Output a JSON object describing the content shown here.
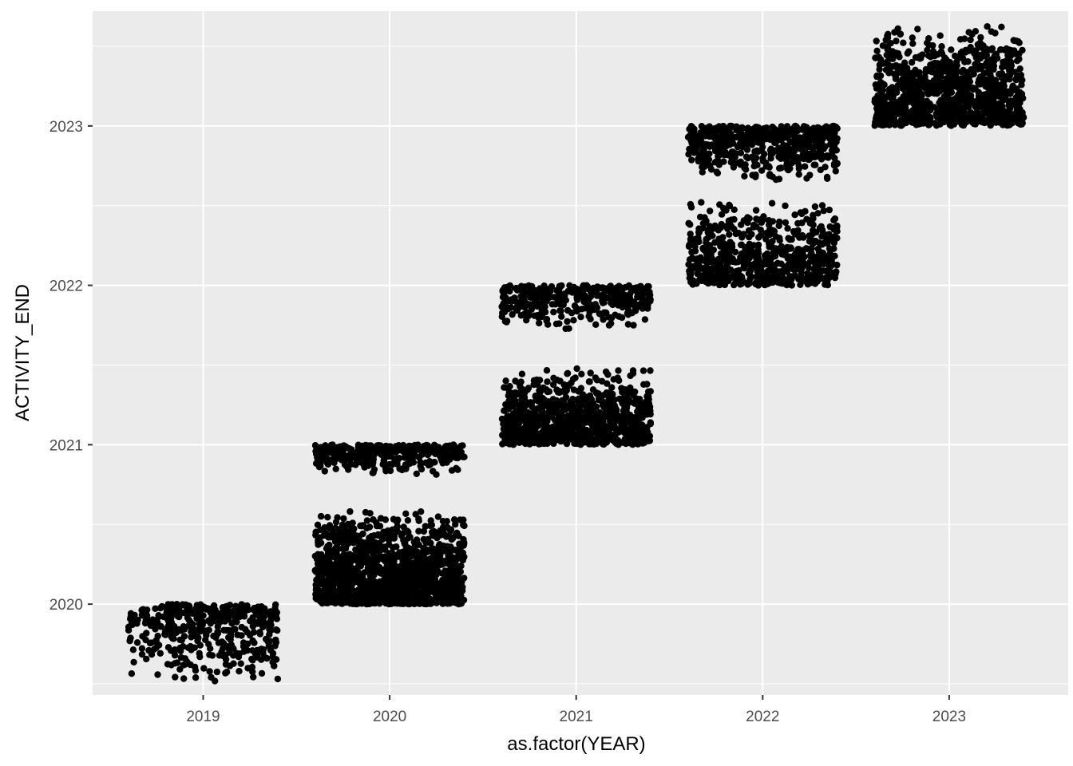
{
  "chart_data": {
    "type": "scatter",
    "title": "",
    "xlabel": "as.factor(YEAR)",
    "ylabel": "ACTIVITY_END",
    "x_type": "categorical-jitter",
    "categories": [
      "2019",
      "2020",
      "2021",
      "2022",
      "2023"
    ],
    "jitter_width": 0.4,
    "ylim": [
      2019.43,
      2023.72
    ],
    "y_ticks": [
      2020,
      2021,
      2022,
      2023
    ],
    "y_tick_labels": [
      "2020",
      "2021",
      "2022",
      "2023"
    ],
    "grid": true,
    "legend": "none",
    "point_color": "#000000",
    "panel_color": "#ebebeb",
    "grid_color": "#ffffff",
    "series": [
      {
        "category": "2019",
        "points": 420,
        "clusters": [
          {
            "y_min": 2019.5,
            "y_max": 2020.0,
            "weight": 1.0,
            "skew_to_max": true
          }
        ]
      },
      {
        "category": "2020",
        "points": 1700,
        "clusters": [
          {
            "y_min": 2020.0,
            "y_max": 2020.6,
            "weight": 0.8,
            "skew_to_max": false
          },
          {
            "y_min": 2020.8,
            "y_max": 2021.0,
            "weight": 0.2,
            "skew_to_max": true
          }
        ]
      },
      {
        "category": "2021",
        "points": 1200,
        "clusters": [
          {
            "y_min": 2021.0,
            "y_max": 2021.5,
            "weight": 0.7,
            "skew_to_max": false
          },
          {
            "y_min": 2021.72,
            "y_max": 2022.0,
            "weight": 0.3,
            "skew_to_max": true
          }
        ]
      },
      {
        "category": "2022",
        "points": 1200,
        "clusters": [
          {
            "y_min": 2022.0,
            "y_max": 2022.55,
            "weight": 0.55,
            "skew_to_max": false
          },
          {
            "y_min": 2022.65,
            "y_max": 2023.0,
            "weight": 0.45,
            "skew_to_max": true
          }
        ]
      },
      {
        "category": "2023",
        "points": 1000,
        "clusters": [
          {
            "y_min": 2023.0,
            "y_max": 2023.65,
            "weight": 1.0,
            "skew_to_max": false
          }
        ]
      }
    ]
  }
}
